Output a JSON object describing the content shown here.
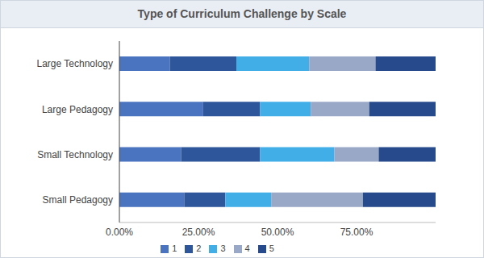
{
  "chart_data": {
    "type": "bar",
    "title": "Type of Curriculum Challenge by Scale",
    "orientation": "horizontal",
    "stacked": true,
    "grid": false,
    "legend": "bottom",
    "categories": [
      "Large Technology",
      "Large Pedagogy",
      "Small Technology",
      "Small Pedagogy"
    ],
    "series": [
      {
        "name": "1",
        "color": "#4a73c0",
        "values": [
          16,
          26.5,
          19.5,
          20.5
        ]
      },
      {
        "name": "2",
        "color": "#2e569a",
        "values": [
          21,
          18,
          25,
          13
        ]
      },
      {
        "name": "3",
        "color": "#41aee8",
        "values": [
          23,
          16,
          23.5,
          14.5
        ]
      },
      {
        "name": "4",
        "color": "#9aa8c8",
        "values": [
          21,
          18.5,
          14,
          29
        ]
      },
      {
        "name": "5",
        "color": "#274a8c",
        "values": [
          19,
          21,
          18,
          23
        ]
      }
    ],
    "xlim": [
      0,
      100
    ],
    "xticks": [
      {
        "value": 0,
        "label": "0.00%"
      },
      {
        "value": 25,
        "label": "25.00%"
      },
      {
        "value": 50,
        "label": "50.00%"
      },
      {
        "value": 75,
        "label": "75.00%"
      }
    ]
  }
}
